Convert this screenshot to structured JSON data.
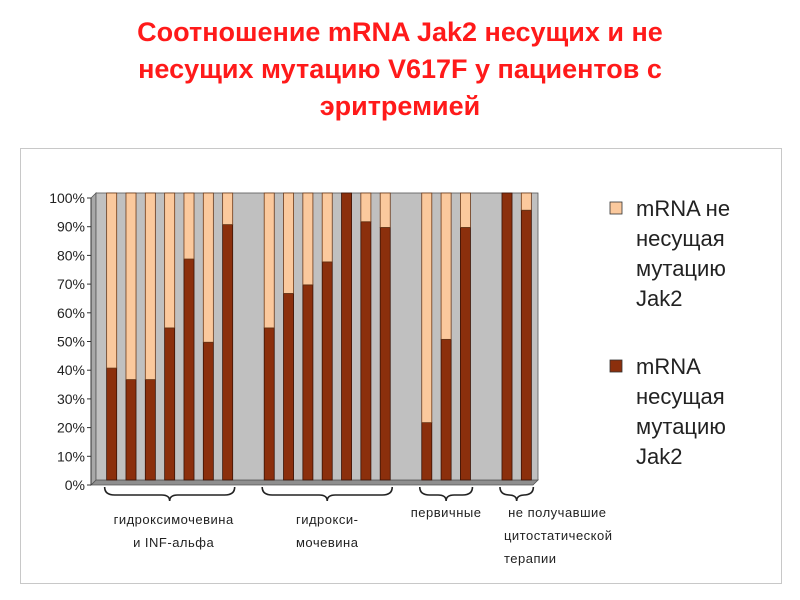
{
  "title_lines": [
    "Соотношение mRNA Jak2 несущих и не",
    "несущих мутацию V617F у пациентов с",
    "эритремией"
  ],
  "colors": {
    "title": "#ff1a1a",
    "non_carrier": "#fbc99d",
    "carrier": "#8b2f0c",
    "plot_bg": "#c0c0c0"
  },
  "chart_data": {
    "type": "bar",
    "stacked": true,
    "y_unit": "%",
    "ylim": [
      0,
      100
    ],
    "y_ticks": [
      "0%",
      "10%",
      "20%",
      "30%",
      "40%",
      "50%",
      "60%",
      "70%",
      "80%",
      "90%",
      "100%"
    ],
    "grid": false,
    "legend_placement": "right",
    "series": [
      {
        "name": "mRNA не несущая мутацию Jak2",
        "name_lines": [
          "mRNA не",
          "несущая",
          "мутацию",
          "Jak2"
        ],
        "color": "#fbc99d",
        "values": [
          61,
          65,
          65,
          47,
          23,
          52,
          11,
          47,
          35,
          32,
          24,
          0,
          10,
          12,
          80,
          51,
          12,
          0,
          6
        ]
      },
      {
        "name": "mRNA несущая мутацию Jak2",
        "name_lines": [
          "mRNA",
          "несущая",
          "мутацию",
          "Jak2"
        ],
        "color": "#8b2f0c",
        "values": [
          39,
          35,
          35,
          53,
          77,
          48,
          89,
          53,
          65,
          68,
          76,
          100,
          90,
          88,
          20,
          49,
          88,
          100,
          94
        ]
      }
    ],
    "groups": [
      {
        "label_lines": [
          "гидроксимочевина",
          "и INF-альфа"
        ],
        "bar_count": 7
      },
      {
        "label_lines": [
          "гидрокси-",
          "мочевина"
        ],
        "bar_count": 7
      },
      {
        "label_lines": [
          "первичные"
        ],
        "bar_count": 3
      },
      {
        "label_lines": [
          " не получавшие",
          "цитостатической",
          "терапии"
        ],
        "bar_count": 2
      }
    ]
  }
}
